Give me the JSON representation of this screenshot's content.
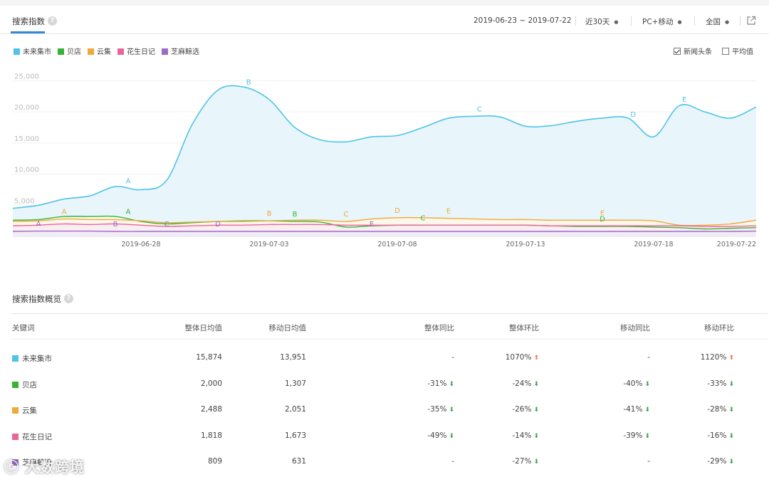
{
  "header": {
    "tab_title": "搜索指数",
    "date_range": "2019-06-23 ~ 2019-07-22",
    "period": "近30天",
    "device": "PC+移动",
    "region": "全国"
  },
  "legend": [
    {
      "name": "未来集市",
      "color": "#4fc3e8"
    },
    {
      "name": "贝店",
      "color": "#36b336"
    },
    {
      "name": "云集",
      "color": "#f0a83c"
    },
    {
      "name": "花生日记",
      "color": "#e8669a"
    },
    {
      "name": "芝麻鲸选",
      "color": "#9b6bc5"
    }
  ],
  "options": {
    "news_label": "新闻头条",
    "news_checked": true,
    "avg_label": "平均值",
    "avg_checked": false
  },
  "chart_data": {
    "type": "area",
    "x": [
      "2019-06-23",
      "2019-06-24",
      "2019-06-25",
      "2019-06-26",
      "2019-06-27",
      "2019-06-28",
      "2019-06-29",
      "2019-06-30",
      "2019-07-01",
      "2019-07-02",
      "2019-07-03",
      "2019-07-04",
      "2019-07-05",
      "2019-07-06",
      "2019-07-07",
      "2019-07-08",
      "2019-07-09",
      "2019-07-10",
      "2019-07-11",
      "2019-07-12",
      "2019-07-13",
      "2019-07-14",
      "2019-07-15",
      "2019-07-16",
      "2019-07-17",
      "2019-07-18",
      "2019-07-19",
      "2019-07-20",
      "2019-07-21",
      "2019-07-22"
    ],
    "x_ticks": [
      "2019-06-28",
      "2019-07-03",
      "2019-07-08",
      "2019-07-13",
      "2019-07-18",
      "2019-07-22"
    ],
    "y_ticks": [
      "5,000",
      "10,000",
      "15,000",
      "20,000",
      "25,000"
    ],
    "ylim": [
      0,
      27000
    ],
    "series": [
      {
        "name": "未来集市",
        "values": [
          4500,
          5000,
          6000,
          6500,
          8000,
          7500,
          9000,
          18000,
          23500,
          24000,
          22000,
          17500,
          15500,
          15200,
          16000,
          16200,
          17500,
          19000,
          19300,
          19200,
          17700,
          17800,
          18500,
          19000,
          19000,
          16000,
          21000,
          20000,
          19000,
          20800
        ]
      },
      {
        "name": "贝店",
        "values": [
          2600,
          2700,
          3200,
          3200,
          3200,
          2400,
          2000,
          2200,
          2400,
          2500,
          2500,
          2400,
          2300,
          1500,
          1700,
          1800,
          1800,
          1800,
          1800,
          1800,
          1800,
          1700,
          1600,
          1600,
          1600,
          1500,
          1400,
          1200,
          1300,
          1400
        ]
      },
      {
        "name": "云集",
        "values": [
          2400,
          2500,
          2800,
          2700,
          2700,
          2500,
          2200,
          2300,
          2400,
          2400,
          2500,
          2600,
          2600,
          2400,
          2800,
          3000,
          3000,
          2900,
          2800,
          2700,
          2700,
          2600,
          2600,
          2600,
          2600,
          2500,
          1800,
          1800,
          2000,
          2600
        ]
      },
      {
        "name": "花生日记",
        "values": [
          1700,
          1800,
          2000,
          1900,
          2000,
          1800,
          1600,
          1700,
          1800,
          1800,
          1900,
          1900,
          1900,
          1800,
          1800,
          1800,
          1800,
          1800,
          1800,
          1800,
          1800,
          1700,
          1700,
          1700,
          1700,
          1700,
          1700,
          1600,
          1600,
          1700
        ]
      },
      {
        "name": "芝麻鲸选",
        "values": [
          800,
          850,
          850,
          850,
          800,
          800,
          800,
          800,
          800,
          800,
          800,
          800,
          800,
          800,
          800,
          800,
          800,
          800,
          800,
          800,
          800,
          800,
          800,
          800,
          800,
          800,
          800,
          800,
          800,
          850
        ]
      }
    ],
    "annotations": [
      {
        "label": "A",
        "series": 0,
        "x": 4.5
      },
      {
        "label": "B",
        "series": 0,
        "x": 9.2
      },
      {
        "label": "C",
        "series": 0,
        "x": 18.2
      },
      {
        "label": "D",
        "series": 0,
        "x": 24.2
      },
      {
        "label": "E",
        "series": 0,
        "x": 26.2
      },
      {
        "label": "A",
        "series": 1,
        "x": 4.5
      },
      {
        "label": "B",
        "series": 1,
        "x": 11.0
      },
      {
        "label": "C",
        "series": 1,
        "x": 16.0
      },
      {
        "label": "D",
        "series": 1,
        "x": 23.0
      },
      {
        "label": "A",
        "series": 2,
        "x": 2.0
      },
      {
        "label": "B",
        "series": 2,
        "x": 10.0
      },
      {
        "label": "C",
        "series": 2,
        "x": 13.0
      },
      {
        "label": "D",
        "series": 2,
        "x": 15.0
      },
      {
        "label": "E",
        "series": 2,
        "x": 17.0
      },
      {
        "label": "E",
        "series": 2,
        "x": 23.0
      },
      {
        "label": "A",
        "series": 4,
        "x": 1.0
      },
      {
        "label": "B",
        "series": 4,
        "x": 4.0
      },
      {
        "label": "C",
        "series": 4,
        "x": 6.0
      },
      {
        "label": "D",
        "series": 4,
        "x": 8.0
      },
      {
        "label": "E",
        "series": 4,
        "x": 14.0
      }
    ]
  },
  "summary": {
    "title": "搜索指数概览",
    "columns": [
      "关键词",
      "整体日均值",
      "移动日均值",
      "整体同比",
      "整体环比",
      "移动同比",
      "移动环比"
    ],
    "rows": [
      {
        "keyword": "未来集市",
        "color": "#4fc3e8",
        "overall_avg": "15,874",
        "mobile_avg": "13,951",
        "overall_yoy": "-",
        "overall_yoy_dir": "",
        "overall_mom": "1070%",
        "overall_mom_dir": "up",
        "mobile_yoy": "-",
        "mobile_yoy_dir": "",
        "mobile_mom": "1120%",
        "mobile_mom_dir": "up"
      },
      {
        "keyword": "贝店",
        "color": "#36b336",
        "overall_avg": "2,000",
        "mobile_avg": "1,307",
        "overall_yoy": "-31%",
        "overall_yoy_dir": "down",
        "overall_mom": "-24%",
        "overall_mom_dir": "down",
        "mobile_yoy": "-40%",
        "mobile_yoy_dir": "down",
        "mobile_mom": "-33%",
        "mobile_mom_dir": "down"
      },
      {
        "keyword": "云集",
        "color": "#f0a83c",
        "overall_avg": "2,488",
        "mobile_avg": "2,051",
        "overall_yoy": "-35%",
        "overall_yoy_dir": "down",
        "overall_mom": "-26%",
        "overall_mom_dir": "down",
        "mobile_yoy": "-41%",
        "mobile_yoy_dir": "down",
        "mobile_mom": "-28%",
        "mobile_mom_dir": "down"
      },
      {
        "keyword": "花生日记",
        "color": "#e8669a",
        "overall_avg": "1,818",
        "mobile_avg": "1,673",
        "overall_yoy": "-49%",
        "overall_yoy_dir": "down",
        "overall_mom": "-14%",
        "overall_mom_dir": "down",
        "mobile_yoy": "-39%",
        "mobile_yoy_dir": "down",
        "mobile_mom": "-16%",
        "mobile_mom_dir": "down"
      },
      {
        "keyword": "芝麻鲸选",
        "color": "#9b6bc5",
        "overall_avg": "809",
        "mobile_avg": "631",
        "overall_yoy": "-",
        "overall_yoy_dir": "",
        "overall_mom": "-27%",
        "overall_mom_dir": "down",
        "mobile_yoy": "-",
        "mobile_yoy_dir": "",
        "mobile_mom": "-29%",
        "mobile_mom_dir": "down"
      }
    ]
  },
  "watermark": "大数跨境"
}
